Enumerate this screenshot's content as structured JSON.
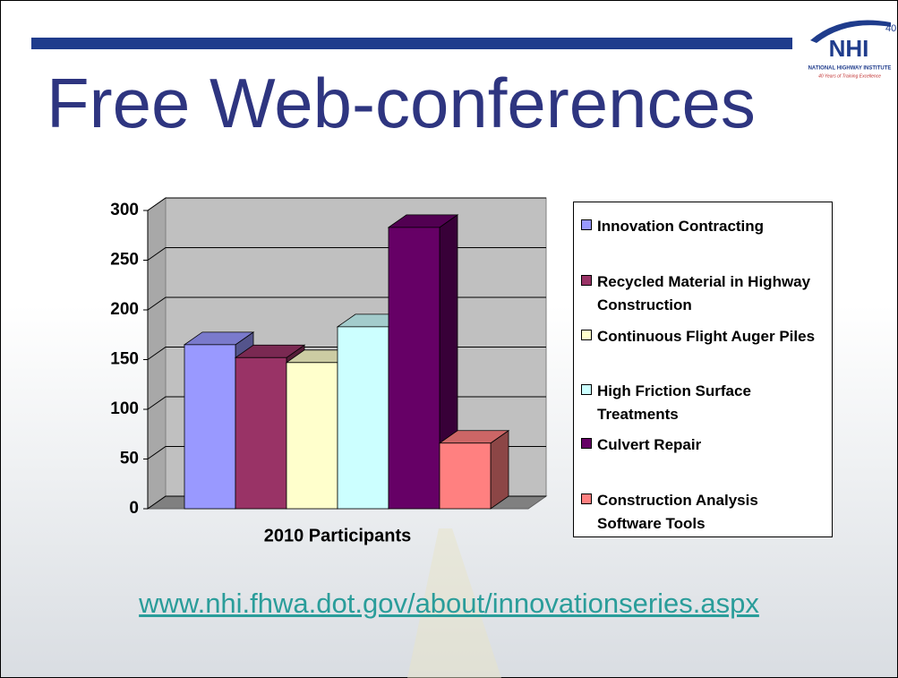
{
  "title": "Free Web-conferences",
  "logo": {
    "mark": "NHI",
    "years": "40",
    "name": "NATIONAL HIGHWAY INSTITUTE",
    "tagline": "40 Years of Training Excellence"
  },
  "chart_data": {
    "type": "bar3d",
    "categories": [
      "2010 Participants"
    ],
    "series": [
      {
        "name": "Innovation Contracting",
        "color": "#9999ff",
        "values": [
          165
        ]
      },
      {
        "name": "Recycled Material in Highway Construction",
        "color": "#993366",
        "values": [
          152
        ]
      },
      {
        "name": "Continuous Flight Auger Piles",
        "color": "#ffffcc",
        "values": [
          147
        ]
      },
      {
        "name": "High Friction Surface Treatments",
        "color": "#ccffff",
        "values": [
          183
        ]
      },
      {
        "name": "Culvert Repair",
        "color": "#660066",
        "values": [
          283
        ]
      },
      {
        "name": "Construction Analysis Software Tools",
        "color": "#ff8080",
        "values": [
          66
        ]
      }
    ],
    "ylim": [
      0,
      300
    ],
    "yticks": [
      0,
      50,
      100,
      150,
      200,
      250,
      300
    ],
    "grid": true,
    "legend": "right"
  },
  "link": "www.nhi.fhwa.dot.gov/about/innovationseries.aspx"
}
